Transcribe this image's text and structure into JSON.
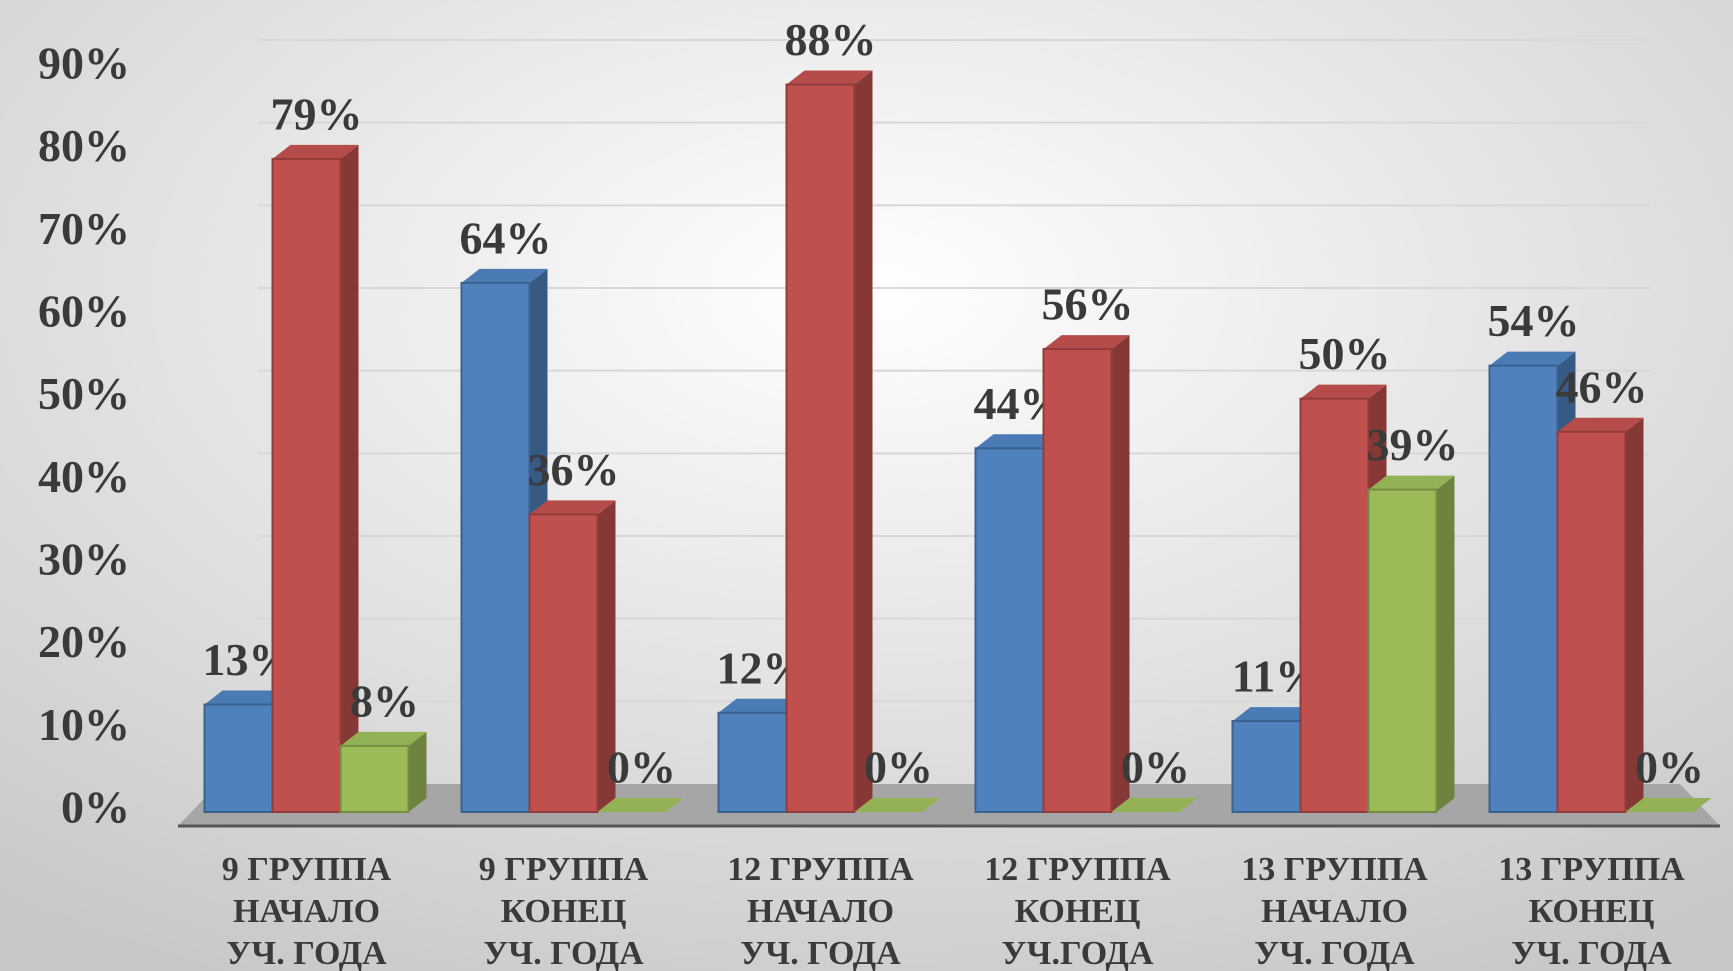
{
  "chart_data": {
    "type": "bar3d",
    "categories": [
      [
        "9 ГРУППА",
        "НАЧАЛО",
        "УЧ. ГОДА"
      ],
      [
        "9 ГРУППА",
        "КОНЕЦ",
        "УЧ. ГОДА"
      ],
      [
        "12 ГРУППА",
        "НАЧАЛО",
        "УЧ. ГОДА"
      ],
      [
        "12 ГРУППА",
        "КОНЕЦ",
        "УЧ.ГОДА"
      ],
      [
        "13 ГРУППА",
        "НАЧАЛО",
        "УЧ. ГОДА"
      ],
      [
        "13 ГРУППА",
        "КОНЕЦ",
        "УЧ. ГОДА"
      ]
    ],
    "series": [
      {
        "color": "#4f81bd",
        "values": [
          13,
          64,
          12,
          44,
          11,
          54
        ],
        "value_labels": [
          "13%",
          "64%",
          "12%",
          "44%",
          "11%",
          "54%"
        ]
      },
      {
        "color": "#c0504d",
        "values": [
          79,
          36,
          88,
          56,
          50,
          46
        ],
        "value_labels": [
          "79%",
          "36%",
          "88%",
          "56%",
          "50%",
          "46%"
        ]
      },
      {
        "color": "#9bbb59",
        "values": [
          8,
          0,
          0,
          0,
          39,
          0
        ],
        "value_labels": [
          "8%",
          "0%",
          "0%",
          "0%",
          "39%",
          "0%"
        ]
      }
    ],
    "ylim": [
      0,
      90
    ],
    "yticks": [
      {
        "value": 0,
        "label": "0%"
      },
      {
        "value": 10,
        "label": "10%"
      },
      {
        "value": 20,
        "label": "20%"
      },
      {
        "value": 30,
        "label": "30%"
      },
      {
        "value": 40,
        "label": "40%"
      },
      {
        "value": 50,
        "label": "50%"
      },
      {
        "value": 60,
        "label": "60%"
      },
      {
        "value": 70,
        "label": "70%"
      },
      {
        "value": 80,
        "label": "80%"
      },
      {
        "value": 90,
        "label": "90%"
      }
    ],
    "grid": true
  }
}
